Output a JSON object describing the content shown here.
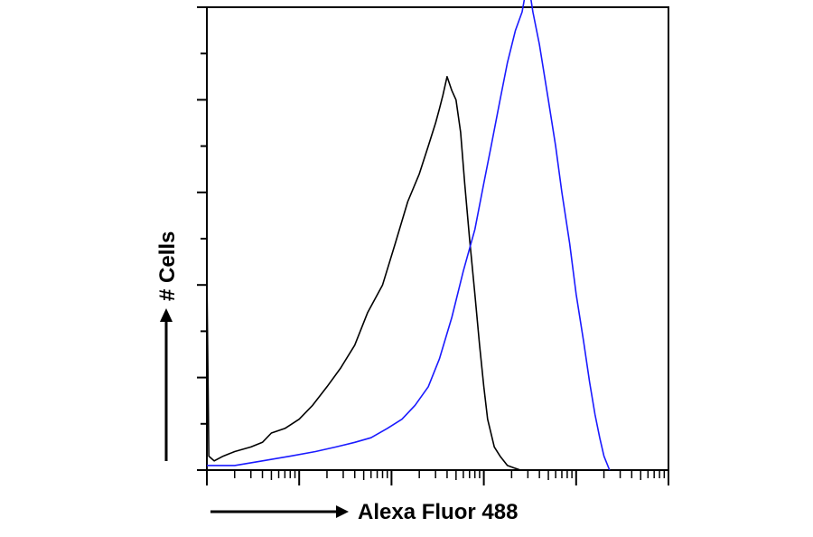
{
  "chart_data": {
    "type": "line",
    "title": "",
    "xlabel": "Alexa Fluor 488",
    "ylabel": "# Cells",
    "x_scale": "log",
    "xlim": [
      1,
      100000
    ],
    "ylim": [
      0,
      100
    ],
    "x_decades": [
      1,
      10,
      100,
      1000,
      10000,
      100000
    ],
    "y_major_ticks": [
      0,
      20,
      40,
      60,
      80,
      100
    ],
    "grid": false,
    "legend": "none",
    "colors": {
      "control": "#000000",
      "sample": "#1a1aff",
      "axis": "#000000"
    },
    "series": [
      {
        "color": "#000000",
        "x": [
          1,
          1.05,
          1.2,
          1.5,
          2,
          3,
          4,
          5,
          7,
          10,
          14,
          20,
          28,
          40,
          55,
          80,
          110,
          150,
          200,
          250,
          300,
          330,
          360,
          400,
          450,
          500,
          560,
          620,
          700,
          800,
          900,
          1000,
          1100,
          1300,
          1500,
          1800,
          2100,
          2500
        ],
        "y": [
          42,
          3,
          2,
          3,
          4,
          5,
          6,
          8,
          9,
          11,
          14,
          18,
          22,
          27,
          34,
          40,
          49,
          58,
          64,
          70,
          75,
          78,
          81,
          85,
          82,
          80,
          73,
          62,
          50,
          38,
          27,
          18,
          11,
          5,
          3,
          1,
          0.5,
          0
        ]
      },
      {
        "color": "#1a1aff",
        "x": [
          1,
          2,
          4,
          8,
          15,
          25,
          40,
          60,
          90,
          130,
          180,
          250,
          330,
          450,
          600,
          800,
          1000,
          1200,
          1500,
          1800,
          2200,
          2600,
          3000,
          3400,
          4000,
          5000,
          6000,
          7000,
          8500,
          10000,
          12000,
          14000,
          16000,
          18000,
          20000,
          23000
        ],
        "y": [
          1,
          1,
          2,
          3,
          4,
          5,
          6,
          7,
          9,
          11,
          14,
          18,
          24,
          33,
          43,
          52,
          62,
          70,
          80,
          88,
          95,
          99,
          106,
          99,
          92,
          80,
          70,
          60,
          49,
          38,
          28,
          19,
          12,
          7,
          3,
          0
        ]
      }
    ]
  }
}
